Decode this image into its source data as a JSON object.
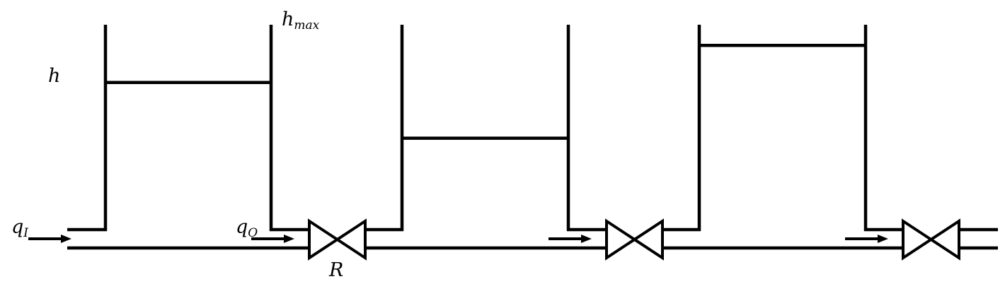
{
  "labels": {
    "h": {
      "base": "h",
      "sub": ""
    },
    "hmax": {
      "base": "h",
      "sub": "max"
    },
    "qi": {
      "base": "q",
      "sub": "I"
    },
    "qo": {
      "base": "q",
      "sub": "O"
    },
    "r": {
      "base": "R",
      "sub": ""
    }
  },
  "tanks": [
    {
      "id": "tank-1",
      "level_fraction": 0.72
    },
    {
      "id": "tank-2",
      "level_fraction": 0.45
    },
    {
      "id": "tank-3",
      "level_fraction": 0.9
    }
  ],
  "valves": [
    {
      "id": "valve-1"
    },
    {
      "id": "valve-2"
    },
    {
      "id": "valve-3"
    }
  ],
  "colors": {
    "stroke": "#000000",
    "background": "#ffffff"
  }
}
